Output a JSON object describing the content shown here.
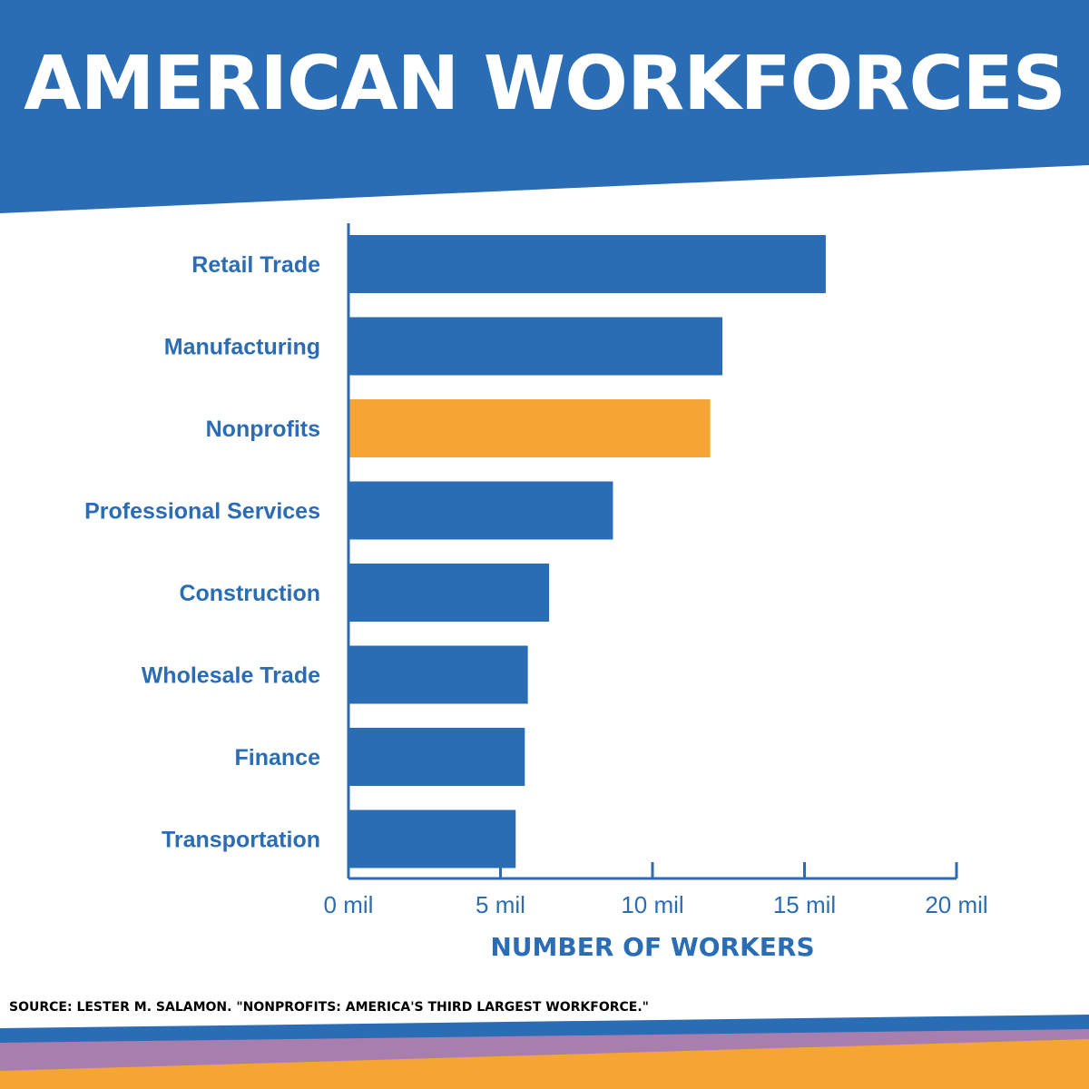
{
  "header": {
    "title": "AMERICAN WORKFORCES"
  },
  "colors": {
    "brand_blue": "#2b6db5",
    "highlight_orange": "#f5a533",
    "purple": "#a77eae",
    "axis": "#2b6db5"
  },
  "chart_data": {
    "type": "bar",
    "orientation": "horizontal",
    "title": "AMERICAN WORKFORCES",
    "xlabel": "NUMBER OF WORKERS",
    "ylabel": "",
    "categories": [
      "Retail Trade",
      "Manufacturing",
      "Nonprofits",
      "Professional Services",
      "Construction",
      "Wholesale Trade",
      "Finance",
      "Transportation"
    ],
    "values": [
      15.7,
      12.3,
      11.9,
      8.7,
      6.6,
      5.9,
      5.8,
      5.5
    ],
    "unit": "mil",
    "highlight_category": "Nonprofits",
    "xlim": [
      0,
      20
    ],
    "xticks": [
      0,
      5,
      10,
      15,
      20
    ],
    "xtick_labels": [
      "0 mil",
      "5 mil",
      "10 mil",
      "15 mil",
      "20 mil"
    ],
    "grid": false,
    "legend": "none"
  },
  "source": {
    "text": "SOURCE: LESTER M. SALAMON. \"NONPROFITS: AMERICA'S THIRD LARGEST WORKFORCE.\""
  }
}
